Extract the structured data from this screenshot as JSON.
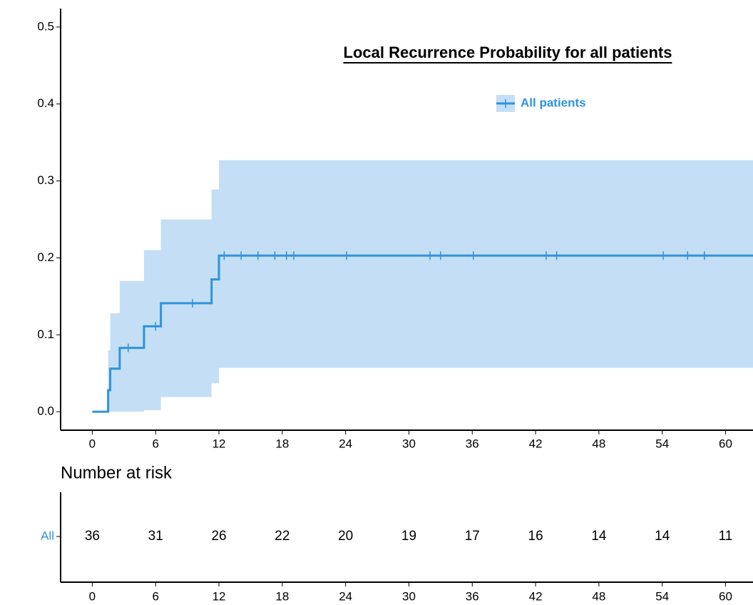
{
  "chart_data": [
    {
      "type": "step",
      "title": "Local Recurrence Probability for all patients",
      "series": [
        {
          "name": "All patients",
          "color": "#2e94dc",
          "band_color": "#c4dff5",
          "x": [
            0,
            1.5,
            1.7,
            2.6,
            4.9,
            6.5,
            11.3,
            12,
            62.6
          ],
          "values": [
            0,
            0.028,
            0.056,
            0.083,
            0.111,
            0.141,
            0.172,
            0.203,
            0.203
          ],
          "lower": [
            0,
            0,
            0,
            0,
            0.002,
            0.019,
            0.037,
            0.057,
            0.057
          ],
          "upper": [
            0,
            0.08,
            0.128,
            0.17,
            0.21,
            0.25,
            0.289,
            0.327,
            0.327
          ],
          "censor_x": [
            3.4,
            6.0,
            9.5,
            12.5,
            14.1,
            15.7,
            17.3,
            18.4,
            19.1,
            24.1,
            32,
            33,
            36.1,
            43,
            44,
            54.1,
            56.4,
            58.0
          ],
          "censor_values": [
            0.083,
            0.111,
            0.141,
            0.203,
            0.203,
            0.203,
            0.203,
            0.203,
            0.203,
            0.203,
            0.203,
            0.203,
            0.203,
            0.203,
            0.203,
            0.203,
            0.203,
            0.203
          ]
        }
      ],
      "xlim": [
        -3,
        62.6
      ],
      "xticks": [
        0,
        6,
        12,
        18,
        24,
        30,
        36,
        42,
        48,
        54,
        60
      ],
      "ylim": [
        -0.024,
        0.524
      ],
      "yticks": [
        {
          "value": 0,
          "label": "0.0"
        },
        0.1,
        0.2,
        0.3,
        0.4,
        0.5
      ],
      "legend": "top-right"
    },
    {
      "type": "risk_table",
      "title": "Number at risk",
      "x": [
        0,
        6,
        12,
        18,
        24,
        30,
        36,
        42,
        48,
        54,
        60
      ],
      "series": [
        {
          "name": "All",
          "color": "#2e94dc",
          "values": [
            36,
            31,
            26,
            22,
            20,
            19,
            17,
            16,
            14,
            14,
            11
          ]
        }
      ],
      "xlim": [
        -3,
        62.6
      ],
      "xticks": [
        0,
        6,
        12,
        18,
        24,
        30,
        36,
        42,
        48,
        54,
        60
      ]
    }
  ]
}
